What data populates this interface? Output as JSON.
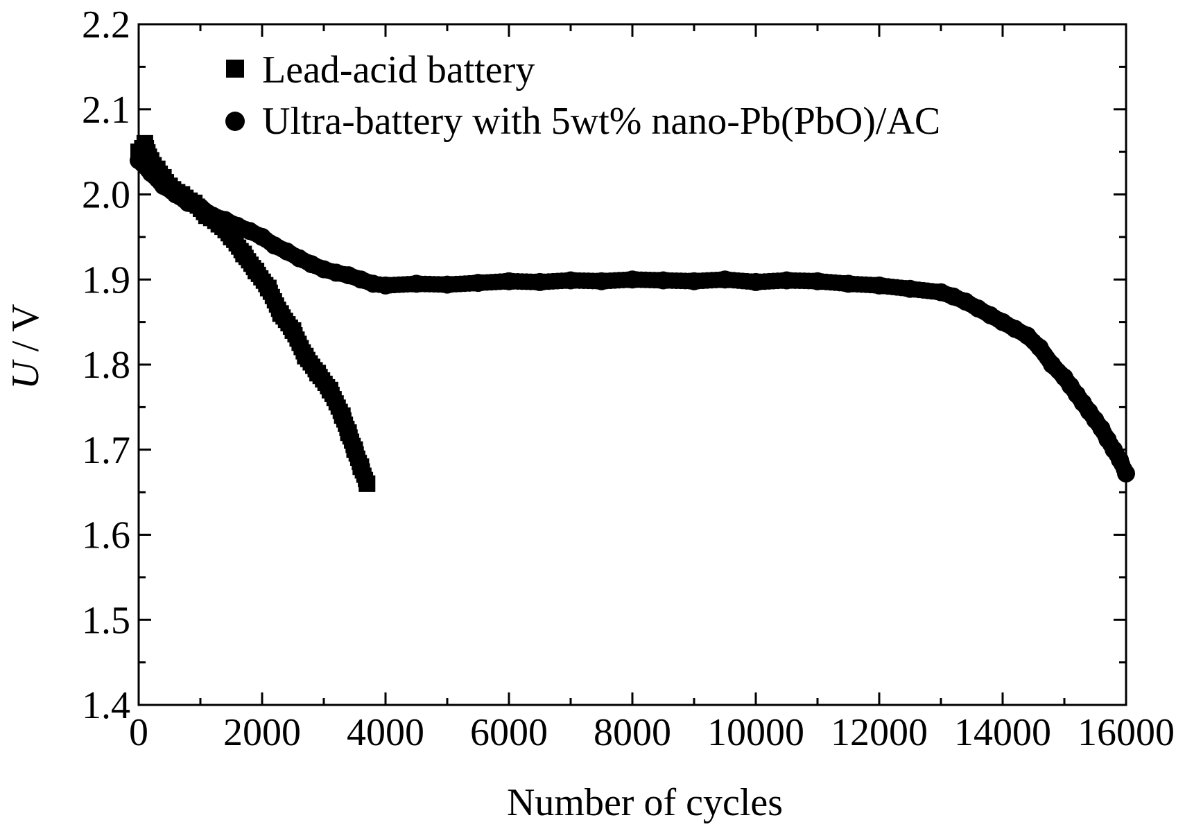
{
  "chart_data": {
    "type": "scatter",
    "xlabel": "Number of cycles",
    "ylabel_italic": "U",
    "ylabel_rest": " / V",
    "xlim": [
      0,
      16000
    ],
    "ylim": [
      1.4,
      2.2
    ],
    "xticks": [
      0,
      2000,
      4000,
      6000,
      8000,
      10000,
      12000,
      14000,
      16000
    ],
    "xtick_labels": [
      "0",
      "2000",
      "4000",
      "6000",
      "8000",
      "10000",
      "12000",
      "14000",
      "16000"
    ],
    "yticks": [
      1.4,
      1.5,
      1.6,
      1.7,
      1.8,
      1.9,
      2.0,
      2.1,
      2.2
    ],
    "ytick_labels": [
      "1.4",
      "1.5",
      "1.6",
      "1.7",
      "1.8",
      "1.9",
      "2.0",
      "2.1",
      "2.2"
    ],
    "grid": false,
    "legend_position": "top-left",
    "series": [
      {
        "name": "Lead-acid battery",
        "marker": "square",
        "color": "#000000",
        "x": [
          0,
          100,
          200,
          300,
          400,
          500,
          700,
          900,
          1100,
          1300,
          1500,
          1700,
          1900,
          2100,
          2300,
          2500,
          2700,
          2900,
          3100,
          3300,
          3400,
          3500,
          3600,
          3700
        ],
        "y": [
          2.05,
          2.06,
          2.04,
          2.03,
          2.02,
          2.01,
          2.0,
          1.99,
          1.975,
          1.965,
          1.95,
          1.93,
          1.91,
          1.89,
          1.86,
          1.84,
          1.81,
          1.79,
          1.77,
          1.74,
          1.72,
          1.7,
          1.68,
          1.66
        ]
      },
      {
        "name": "Ultra-battery with 5wt% nano-Pb(PbO)/AC",
        "marker": "circle",
        "color": "#000000",
        "x": [
          0,
          200,
          400,
          600,
          800,
          1000,
          1200,
          1400,
          1600,
          1800,
          2000,
          2200,
          2400,
          2600,
          2800,
          3000,
          3200,
          3400,
          3600,
          3800,
          4000,
          4500,
          5000,
          5500,
          6000,
          6500,
          7000,
          7500,
          8000,
          8500,
          9000,
          9500,
          10000,
          10500,
          11000,
          11500,
          12000,
          12500,
          13000,
          13200,
          13400,
          13600,
          13800,
          14000,
          14200,
          14400,
          14600,
          14800,
          15000,
          15100,
          15200,
          15300,
          15400,
          15500,
          15600,
          15700,
          15800,
          15900,
          16000
        ],
        "y": [
          2.04,
          2.025,
          2.01,
          2.0,
          1.99,
          1.985,
          1.975,
          1.97,
          1.963,
          1.957,
          1.95,
          1.94,
          1.933,
          1.925,
          1.918,
          1.912,
          1.908,
          1.905,
          1.9,
          1.895,
          1.893,
          1.895,
          1.894,
          1.896,
          1.898,
          1.897,
          1.899,
          1.898,
          1.9,
          1.899,
          1.898,
          1.9,
          1.897,
          1.899,
          1.898,
          1.895,
          1.893,
          1.889,
          1.885,
          1.88,
          1.874,
          1.866,
          1.858,
          1.85,
          1.842,
          1.834,
          1.82,
          1.8,
          1.785,
          1.775,
          1.765,
          1.755,
          1.745,
          1.735,
          1.725,
          1.712,
          1.7,
          1.688,
          1.672
        ]
      }
    ]
  }
}
